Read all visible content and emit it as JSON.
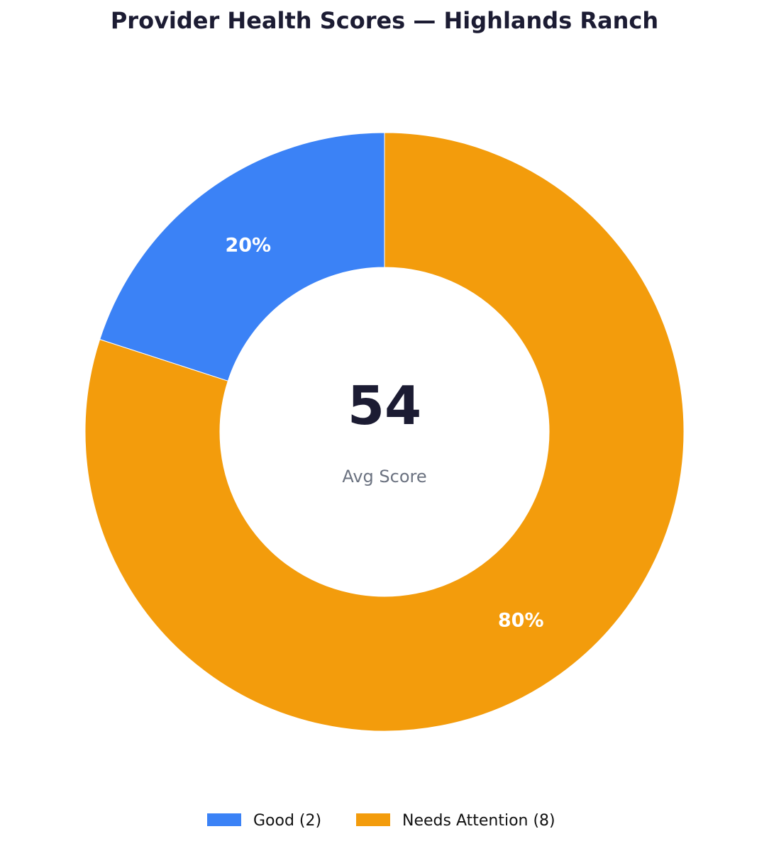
{
  "chart_data": {
    "type": "pie",
    "title": "Provider Health Scores — Highlands Ranch",
    "categories": [
      "Good (2)",
      "Needs Attention (8)"
    ],
    "values": [
      2,
      8
    ],
    "labels": [
      "20%",
      "80%"
    ],
    "colors": [
      "#3b82f6",
      "#f39c0c"
    ],
    "center": {
      "value": "54",
      "caption": "Avg Score"
    },
    "legend": "bottom-center"
  }
}
